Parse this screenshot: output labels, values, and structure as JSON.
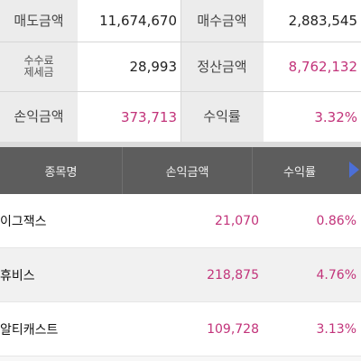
{
  "summary": {
    "sell_amount": {
      "label": "매도금액",
      "value": "11,674,670"
    },
    "buy_amount": {
      "label": "매수금액",
      "value": "2,883,545"
    },
    "fee_tax": {
      "label_line1": "수수료",
      "label_line2": "제세금",
      "value": "28,993"
    },
    "settlement_amount": {
      "label": "정산금액",
      "value": "8,762,132"
    },
    "profit_amount": {
      "label": "손익금액",
      "value": "373,713"
    },
    "return_rate": {
      "label": "수익률",
      "value": "3.32%"
    }
  },
  "table": {
    "headers": {
      "name": "종목명",
      "profit": "손익금액",
      "rate": "수익률"
    },
    "rows": [
      {
        "name": "이그잭스",
        "profit": "21,070",
        "rate": "0.86%"
      },
      {
        "name": "휴비스",
        "profit": "218,875",
        "rate": "4.76%"
      },
      {
        "name": "알티캐스트",
        "profit": "109,728",
        "rate": "3.13%"
      }
    ]
  },
  "colors": {
    "accent_pink": "#c2337a",
    "header_bg": "#5d5d5d",
    "arrow_blue": "#4c6fd6"
  }
}
